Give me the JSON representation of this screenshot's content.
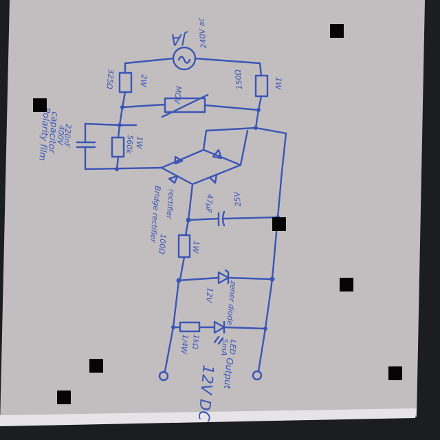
{
  "diagram": {
    "paper_color": "#c2bec0",
    "ink_color": "#3a55b5",
    "background_color": "#1c1d20",
    "labels": {
      "ac_source_1": "JA",
      "ac_source_2": "240V ac",
      "r_top_left_1": "325Ω",
      "r_top_left_2": "2W",
      "mov": "MOV",
      "r_top_right_1": "150Ω",
      "r_top_right_2": "1W",
      "cap_left_1": "220nF",
      "cap_left_2": "400V",
      "r_mid_left_1": "560k",
      "r_mid_left_2": "1W",
      "note_1": "Polarity film",
      "note_2": "capacitor",
      "bridge_1": "Bridge rectifier",
      "bridge_2": "rectifier",
      "cap_right_1": "47µF",
      "cap_right_2": "25V",
      "r_series_1": "100Ω",
      "r_series_2": "1W",
      "zener_1": "zener diode",
      "zener_2": "12V",
      "led_1": "LED",
      "led_2": "5mA",
      "r_led_1": "1kΩ",
      "r_led_2": "1/4W",
      "output_1": "12V DC",
      "output_2": "Output"
    }
  }
}
